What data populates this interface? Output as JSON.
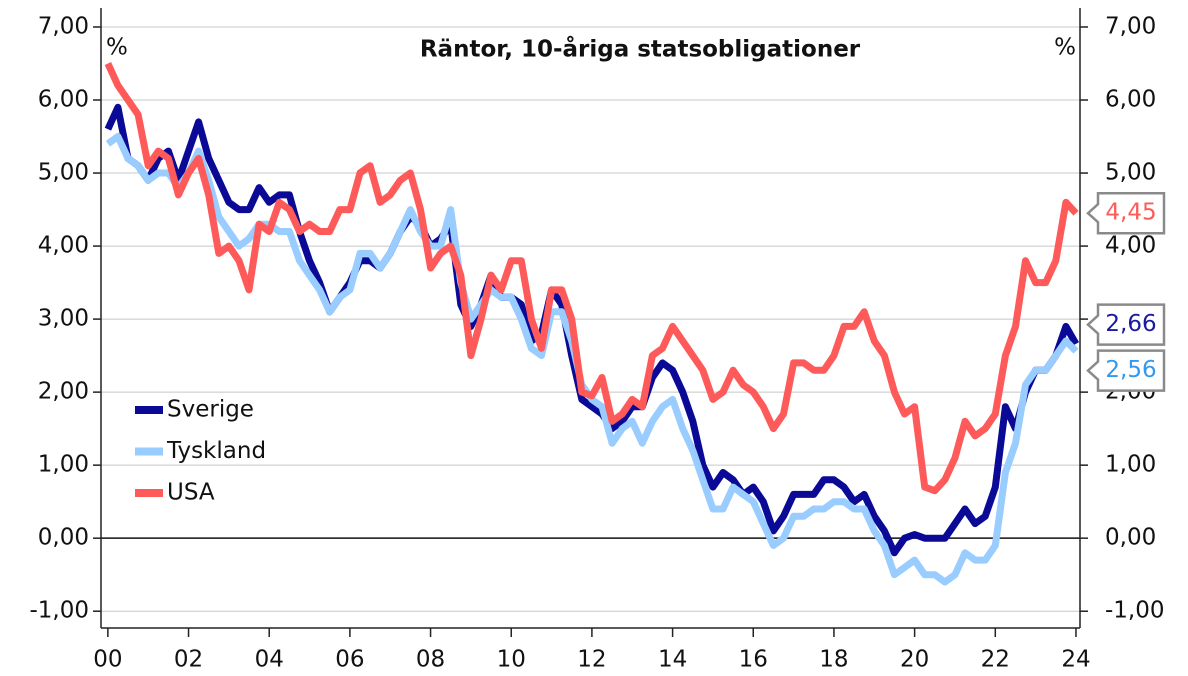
{
  "chart_data": {
    "type": "line",
    "title": "Räntor, 10-åriga statsobligationer",
    "ylabel": "%",
    "y2label": "%",
    "x": [
      2000,
      2000.25,
      2000.5,
      2000.75,
      2001,
      2001.25,
      2001.5,
      2001.75,
      2002,
      2002.25,
      2002.5,
      2002.75,
      2003,
      2003.25,
      2003.5,
      2003.75,
      2004,
      2004.25,
      2004.5,
      2004.75,
      2005,
      2005.25,
      2005.5,
      2005.75,
      2006,
      2006.25,
      2006.5,
      2006.75,
      2007,
      2007.25,
      2007.5,
      2007.75,
      2008,
      2008.25,
      2008.5,
      2008.75,
      2009,
      2009.25,
      2009.5,
      2009.75,
      2010,
      2010.25,
      2010.5,
      2010.75,
      2011,
      2011.25,
      2011.5,
      2011.75,
      2012,
      2012.25,
      2012.5,
      2012.75,
      2013,
      2013.25,
      2013.5,
      2013.75,
      2014,
      2014.25,
      2014.5,
      2014.75,
      2015,
      2015.25,
      2015.5,
      2015.75,
      2016,
      2016.25,
      2016.5,
      2016.75,
      2017,
      2017.25,
      2017.5,
      2017.75,
      2018,
      2018.25,
      2018.5,
      2018.75,
      2019,
      2019.25,
      2019.5,
      2019.75,
      2020,
      2020.25,
      2020.5,
      2020.75,
      2021,
      2021.25,
      2021.5,
      2021.75,
      2022,
      2022.25,
      2022.5,
      2022.75,
      2023,
      2023.25,
      2023.5,
      2023.75,
      2024
    ],
    "series": [
      {
        "name": "Sverige",
        "color": "#0a0a96",
        "label_color": "#1a1aa0",
        "end_label": "2,66",
        "values": [
          5.6,
          5.9,
          5.2,
          5.1,
          4.9,
          5.2,
          5.3,
          4.9,
          5.3,
          5.7,
          5.2,
          4.9,
          4.6,
          4.5,
          4.5,
          4.8,
          4.6,
          4.7,
          4.7,
          4.2,
          3.8,
          3.5,
          3.1,
          3.3,
          3.5,
          3.8,
          3.8,
          3.7,
          3.9,
          4.2,
          4.4,
          4.3,
          4.0,
          4.1,
          4.3,
          3.2,
          2.9,
          3.2,
          3.6,
          3.3,
          3.3,
          3.2,
          2.7,
          2.8,
          3.4,
          3.2,
          2.5,
          1.9,
          1.8,
          1.7,
          1.5,
          1.6,
          1.8,
          1.8,
          2.2,
          2.4,
          2.3,
          2.0,
          1.6,
          1.0,
          0.7,
          0.9,
          0.8,
          0.6,
          0.7,
          0.5,
          0.1,
          0.3,
          0.6,
          0.6,
          0.6,
          0.8,
          0.8,
          0.7,
          0.5,
          0.6,
          0.3,
          0.1,
          -0.2,
          0.0,
          0.05,
          0.0,
          0.0,
          0.0,
          0.2,
          0.4,
          0.2,
          0.3,
          0.7,
          1.8,
          1.5,
          2.0,
          2.3,
          2.3,
          2.5,
          2.9,
          2.66
        ]
      },
      {
        "name": "Tyskland",
        "color": "#99ccff",
        "label_color": "#3399ee",
        "end_label": "2,56",
        "values": [
          5.4,
          5.5,
          5.2,
          5.1,
          4.9,
          5.0,
          5.0,
          4.8,
          5.0,
          5.3,
          4.9,
          4.4,
          4.2,
          4.0,
          4.1,
          4.3,
          4.3,
          4.2,
          4.2,
          3.8,
          3.6,
          3.4,
          3.1,
          3.3,
          3.4,
          3.9,
          3.9,
          3.7,
          3.9,
          4.2,
          4.5,
          4.2,
          4.0,
          4.0,
          4.5,
          3.5,
          3.0,
          3.2,
          3.4,
          3.3,
          3.3,
          3.0,
          2.6,
          2.5,
          3.1,
          3.1,
          2.7,
          2.1,
          1.9,
          1.8,
          1.3,
          1.5,
          1.6,
          1.3,
          1.6,
          1.8,
          1.9,
          1.5,
          1.2,
          0.8,
          0.4,
          0.4,
          0.7,
          0.6,
          0.5,
          0.2,
          -0.1,
          0.0,
          0.3,
          0.3,
          0.4,
          0.4,
          0.5,
          0.5,
          0.4,
          0.4,
          0.1,
          -0.1,
          -0.5,
          -0.4,
          -0.3,
          -0.5,
          -0.5,
          -0.6,
          -0.5,
          -0.2,
          -0.3,
          -0.3,
          -0.1,
          0.9,
          1.3,
          2.1,
          2.3,
          2.3,
          2.5,
          2.7,
          2.56
        ]
      },
      {
        "name": "USA",
        "color": "#ff5a5a",
        "label_color": "#ff5a5a",
        "end_label": "4,45",
        "values": [
          6.5,
          6.2,
          6.0,
          5.8,
          5.1,
          5.3,
          5.2,
          4.7,
          5.0,
          5.2,
          4.7,
          3.9,
          4.0,
          3.8,
          3.4,
          4.3,
          4.2,
          4.6,
          4.5,
          4.2,
          4.3,
          4.2,
          4.2,
          4.5,
          4.5,
          5.0,
          5.1,
          4.6,
          4.7,
          4.9,
          5.0,
          4.5,
          3.7,
          3.9,
          4.0,
          3.6,
          2.5,
          3.0,
          3.6,
          3.4,
          3.8,
          3.8,
          3.0,
          2.6,
          3.4,
          3.4,
          3.0,
          2.0,
          1.95,
          2.2,
          1.6,
          1.7,
          1.9,
          1.8,
          2.5,
          2.6,
          2.9,
          2.7,
          2.5,
          2.3,
          1.9,
          2.0,
          2.3,
          2.1,
          2.0,
          1.8,
          1.5,
          1.7,
          2.4,
          2.4,
          2.3,
          2.3,
          2.5,
          2.9,
          2.9,
          3.1,
          2.7,
          2.5,
          2.0,
          1.7,
          1.8,
          0.7,
          0.65,
          0.8,
          1.1,
          1.6,
          1.4,
          1.5,
          1.7,
          2.5,
          2.9,
          3.8,
          3.5,
          3.5,
          3.8,
          4.6,
          4.45
        ]
      }
    ],
    "xlim": [
      1999.83,
      2024.1
    ],
    "xticks": [
      {
        "value": 2000,
        "label": "00"
      },
      {
        "value": 2002,
        "label": "02"
      },
      {
        "value": 2004,
        "label": "04"
      },
      {
        "value": 2006,
        "label": "06"
      },
      {
        "value": 2008,
        "label": "08"
      },
      {
        "value": 2010,
        "label": "10"
      },
      {
        "value": 2012,
        "label": "12"
      },
      {
        "value": 2014,
        "label": "14"
      },
      {
        "value": 2016,
        "label": "16"
      },
      {
        "value": 2018,
        "label": "18"
      },
      {
        "value": 2020,
        "label": "20"
      },
      {
        "value": 2022,
        "label": "22"
      },
      {
        "value": 2024,
        "label": "24"
      }
    ],
    "ylim": [
      -1.23,
      7.26
    ],
    "yticks": [
      {
        "value": -1,
        "label": "-1,00"
      },
      {
        "value": 0,
        "label": "0,00"
      },
      {
        "value": 1,
        "label": "1,00"
      },
      {
        "value": 2,
        "label": "2,00"
      },
      {
        "value": 3,
        "label": "3,00"
      },
      {
        "value": 4,
        "label": "4,00"
      },
      {
        "value": 5,
        "label": "5,00"
      },
      {
        "value": 6,
        "label": "6,00"
      },
      {
        "value": 7,
        "label": "7,00"
      }
    ],
    "y2lim": [
      -1.23,
      7.26
    ],
    "y2ticks": [
      {
        "value": -1,
        "label": "-1,00"
      },
      {
        "value": 0,
        "label": "0,00"
      },
      {
        "value": 1,
        "label": "1,00"
      },
      {
        "value": 2,
        "label": "2,00"
      },
      {
        "value": 3,
        "label": "3,00"
      },
      {
        "value": 4,
        "label": "4,00"
      },
      {
        "value": 5,
        "label": "5,00"
      },
      {
        "value": 6,
        "label": "6,00"
      },
      {
        "value": 7,
        "label": "7,00"
      }
    ],
    "grid": true,
    "legend": "left"
  }
}
